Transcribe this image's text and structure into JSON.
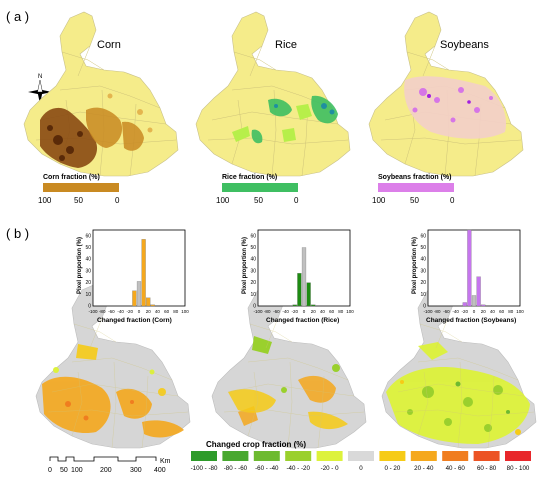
{
  "panel_a": {
    "label": "( a )",
    "maps": [
      {
        "title": "Corn",
        "legend_title": "Corn fraction (%)",
        "ticks": [
          "100",
          "50",
          "0"
        ],
        "colors": [
          "#4a2208",
          "#c98a22",
          "#f6d877",
          "#fbf3a6"
        ]
      },
      {
        "title": "Rice",
        "legend_title": "Rice fraction (%)",
        "ticks": [
          "100",
          "50",
          "0"
        ],
        "colors": [
          "#1f8fa0",
          "#3fbf62",
          "#b7ef4a",
          "#f6f79a"
        ]
      },
      {
        "title": "Soybeans",
        "legend_title": "Soybeans fraction (%)",
        "ticks": [
          "100",
          "50",
          "0"
        ],
        "colors": [
          "#a21fe0",
          "#dc7fe9",
          "#f6d0d0",
          "#fbf3a6"
        ]
      }
    ],
    "north_label": "N"
  },
  "panel_b": {
    "label": "( b )",
    "histograms": [
      {
        "xlabel": "Changed fraction (Corn)",
        "ylabel": "Pixel proportion (%)",
        "color": "#f5a81d",
        "xticks": [
          "-100",
          "-80",
          "-60",
          "-40",
          "-20",
          "0",
          "20",
          "40",
          "60",
          "80",
          "100"
        ],
        "yticks": [
          "0",
          "10",
          "20",
          "30",
          "40",
          "50",
          "60"
        ],
        "bars": [
          {
            "x": -10,
            "v": 13
          },
          {
            "x": 0,
            "v": 21
          },
          {
            "x": 10,
            "v": 57
          },
          {
            "x": 20,
            "v": 7
          },
          {
            "x": 30,
            "v": 1
          }
        ]
      },
      {
        "xlabel": "Changed fraction (Rice)",
        "ylabel": "Pixel proportion (%)",
        "color": "#1e8c12",
        "xticks": [
          "-100",
          "-80",
          "-60",
          "-40",
          "-20",
          "0",
          "20",
          "40",
          "60",
          "80",
          "100"
        ],
        "yticks": [
          "0",
          "10",
          "20",
          "30",
          "40",
          "50",
          "60"
        ],
        "bars": [
          {
            "x": -20,
            "v": 1
          },
          {
            "x": -10,
            "v": 28
          },
          {
            "x": 0,
            "v": 50
          },
          {
            "x": 10,
            "v": 20
          },
          {
            "x": 20,
            "v": 1
          }
        ]
      },
      {
        "xlabel": "Changed fraction (Soybeans)",
        "ylabel": "Pixel proportion (%)",
        "color": "#c676ee",
        "xticks": [
          "-100",
          "-80",
          "-60",
          "-40",
          "-20",
          "0",
          "20",
          "40",
          "60",
          "80",
          "100"
        ],
        "yticks": [
          "0",
          "10",
          "20",
          "30",
          "40",
          "50",
          "60"
        ],
        "bars": [
          {
            "x": -20,
            "v": 3
          },
          {
            "x": -10,
            "v": 65
          },
          {
            "x": 0,
            "v": 9
          },
          {
            "x": 10,
            "v": 25
          },
          {
            "x": 20,
            "v": 1
          }
        ]
      }
    ],
    "legend": {
      "title": "Changed crop fraction (%)",
      "items": [
        {
          "label": "-100 - -80",
          "color": "#2e9b2a"
        },
        {
          "label": "-80 - -60",
          "color": "#48a82f"
        },
        {
          "label": "-60 - -40",
          "color": "#6dba30"
        },
        {
          "label": "-40 - -20",
          "color": "#9ad02d"
        },
        {
          "label": "-20 - 0",
          "color": "#ddf23b"
        },
        {
          "label": "0",
          "color": "#d9d9d9"
        },
        {
          "label": "0 - 20",
          "color": "#f6cb16"
        },
        {
          "label": "20 - 40",
          "color": "#f5a81d"
        },
        {
          "label": "40 - 60",
          "color": "#f07d1f"
        },
        {
          "label": "60 - 80",
          "color": "#ec5324"
        },
        {
          "label": "80 - 100",
          "color": "#e8272b"
        }
      ]
    },
    "scalebar": {
      "ticks": [
        "0",
        "50",
        "100",
        "200",
        "300",
        "400"
      ],
      "unit": "Km"
    }
  },
  "colors": {
    "base_yellow": "#f5ec8a",
    "boundary": "#c8c08a",
    "nochange_gray": "#d6d6d6"
  }
}
